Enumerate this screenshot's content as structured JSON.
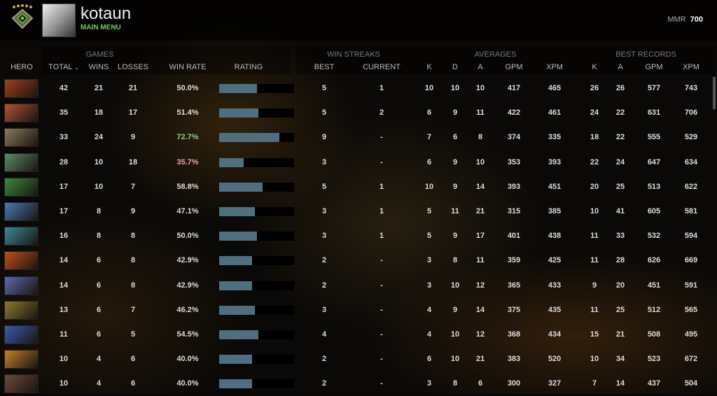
{
  "header": {
    "username": "kotaun",
    "subtitle": "MAIN MENU",
    "mmr_label": "MMR",
    "mmr_value": "700"
  },
  "groups": {
    "games": "GAMES",
    "win_streaks": "WIN STREAKS",
    "averages": "AVERAGES",
    "best_records": "BEST RECORDS"
  },
  "columns": {
    "hero": "HERO",
    "total": "TOTAL",
    "wins": "WINS",
    "losses": "LOSSES",
    "win_rate": "WIN RATE",
    "rating": "RATING",
    "best": "BEST",
    "current": "CURRENT",
    "k": "K",
    "d": "D",
    "a": "A",
    "gpm": "GPM",
    "xpm": "XPM",
    "bk": "K",
    "ba": "A",
    "bgpm": "GPM",
    "bxpm": "XPM"
  },
  "colors": {
    "win_rate_high": "#8fcf8f",
    "win_rate_low": "#e0a0a0",
    "rating_bar": "#4f6f80",
    "menu": "#7bc462"
  },
  "rows": [
    {
      "total": "42",
      "wins": "21",
      "losses": "21",
      "win_rate": "50.0%",
      "rating": 0.5,
      "best": "5",
      "current": "1",
      "k": "10",
      "d": "10",
      "a": "10",
      "gpm": "417",
      "xpm": "465",
      "bk": "26",
      "ba": "26",
      "bgpm": "577",
      "bxpm": "743",
      "hero_color": "#a0401a"
    },
    {
      "total": "35",
      "wins": "18",
      "losses": "17",
      "win_rate": "51.4%",
      "rating": 0.52,
      "best": "5",
      "current": "2",
      "k": "6",
      "d": "9",
      "a": "11",
      "gpm": "422",
      "xpm": "461",
      "bk": "24",
      "ba": "22",
      "bgpm": "631",
      "bxpm": "706",
      "hero_color": "#b0503a"
    },
    {
      "total": "33",
      "wins": "24",
      "losses": "9",
      "win_rate": "72.7%",
      "rating": 0.8,
      "best": "9",
      "current": "-",
      "k": "7",
      "d": "6",
      "a": "8",
      "gpm": "374",
      "xpm": "335",
      "bk": "18",
      "ba": "22",
      "bgpm": "555",
      "bxpm": "529",
      "hero_color": "#8a7a5a",
      "rate_class": "high"
    },
    {
      "total": "28",
      "wins": "10",
      "losses": "18",
      "win_rate": "35.7%",
      "rating": 0.33,
      "best": "3",
      "current": "-",
      "k": "6",
      "d": "9",
      "a": "10",
      "gpm": "353",
      "xpm": "393",
      "bk": "22",
      "ba": "24",
      "bgpm": "647",
      "bxpm": "634",
      "hero_color": "#5a8a6a",
      "rate_class": "low"
    },
    {
      "total": "17",
      "wins": "10",
      "losses": "7",
      "win_rate": "58.8%",
      "rating": 0.58,
      "best": "5",
      "current": "1",
      "k": "10",
      "d": "9",
      "a": "14",
      "gpm": "393",
      "xpm": "451",
      "bk": "20",
      "ba": "25",
      "bgpm": "513",
      "bxpm": "622",
      "hero_color": "#3a8a3a"
    },
    {
      "total": "17",
      "wins": "8",
      "losses": "9",
      "win_rate": "47.1%",
      "rating": 0.48,
      "best": "3",
      "current": "1",
      "k": "5",
      "d": "11",
      "a": "21",
      "gpm": "315",
      "xpm": "385",
      "bk": "10",
      "ba": "41",
      "bgpm": "605",
      "bxpm": "581",
      "hero_color": "#4a7ab0"
    },
    {
      "total": "16",
      "wins": "8",
      "losses": "8",
      "win_rate": "50.0%",
      "rating": 0.5,
      "best": "3",
      "current": "1",
      "k": "5",
      "d": "9",
      "a": "17",
      "gpm": "401",
      "xpm": "438",
      "bk": "11",
      "ba": "33",
      "bgpm": "532",
      "bxpm": "594",
      "hero_color": "#3a8a9a"
    },
    {
      "total": "14",
      "wins": "6",
      "losses": "8",
      "win_rate": "42.9%",
      "rating": 0.44,
      "best": "2",
      "current": "-",
      "k": "3",
      "d": "8",
      "a": "11",
      "gpm": "359",
      "xpm": "425",
      "bk": "11",
      "ba": "28",
      "bgpm": "626",
      "bxpm": "669",
      "hero_color": "#c0501a"
    },
    {
      "total": "14",
      "wins": "6",
      "losses": "8",
      "win_rate": "42.9%",
      "rating": 0.44,
      "best": "2",
      "current": "-",
      "k": "3",
      "d": "10",
      "a": "12",
      "gpm": "365",
      "xpm": "433",
      "bk": "9",
      "ba": "20",
      "bgpm": "451",
      "bxpm": "591",
      "hero_color": "#5a6ab0"
    },
    {
      "total": "13",
      "wins": "6",
      "losses": "7",
      "win_rate": "46.2%",
      "rating": 0.48,
      "best": "3",
      "current": "-",
      "k": "4",
      "d": "9",
      "a": "14",
      "gpm": "375",
      "xpm": "435",
      "bk": "11",
      "ba": "25",
      "bgpm": "512",
      "bxpm": "565",
      "hero_color": "#8a7a2a"
    },
    {
      "total": "11",
      "wins": "6",
      "losses": "5",
      "win_rate": "54.5%",
      "rating": 0.52,
      "best": "4",
      "current": "-",
      "k": "4",
      "d": "10",
      "a": "12",
      "gpm": "368",
      "xpm": "434",
      "bk": "15",
      "ba": "21",
      "bgpm": "508",
      "bxpm": "495",
      "hero_color": "#3a5ab0"
    },
    {
      "total": "10",
      "wins": "4",
      "losses": "6",
      "win_rate": "40.0%",
      "rating": 0.44,
      "best": "2",
      "current": "-",
      "k": "6",
      "d": "10",
      "a": "21",
      "gpm": "383",
      "xpm": "520",
      "bk": "10",
      "ba": "34",
      "bgpm": "523",
      "bxpm": "672",
      "hero_color": "#c0802a"
    },
    {
      "total": "10",
      "wins": "4",
      "losses": "6",
      "win_rate": "40.0%",
      "rating": 0.44,
      "best": "2",
      "current": "-",
      "k": "3",
      "d": "8",
      "a": "6",
      "gpm": "300",
      "xpm": "327",
      "bk": "7",
      "ba": "14",
      "bgpm": "437",
      "bxpm": "504",
      "hero_color": "#6a4a3a"
    }
  ]
}
